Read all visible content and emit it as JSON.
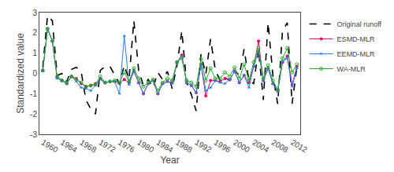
{
  "chart_data": {
    "type": "line",
    "x": [
      1960,
      1961,
      1962,
      1963,
      1964,
      1965,
      1966,
      1967,
      1968,
      1969,
      1970,
      1971,
      1972,
      1973,
      1974,
      1975,
      1976,
      1977,
      1978,
      1979,
      1980,
      1981,
      1982,
      1983,
      1984,
      1985,
      1986,
      1987,
      1988,
      1989,
      1990,
      1991,
      1992,
      1993,
      1994,
      1995,
      1996,
      1997,
      1998,
      1999,
      2000,
      2001,
      2002,
      2003,
      2004,
      2005,
      2006,
      2007,
      2008,
      2009,
      2010,
      2011,
      2012,
      2013
    ],
    "series": [
      {
        "name": "Original runoff",
        "color": "#000000",
        "line_style": "dashed",
        "marker": "none",
        "values": [
          0.3,
          2.85,
          2.6,
          -0.1,
          0.0,
          -0.4,
          0.2,
          0.3,
          0.1,
          -1.3,
          -1.75,
          -2.0,
          0.15,
          0.35,
          0.35,
          -0.1,
          -0.5,
          0.4,
          -0.3,
          2.6,
          0.15,
          -0.6,
          -0.3,
          -0.7,
          0.05,
          -0.3,
          0.1,
          -0.75,
          0.4,
          2.1,
          -0.45,
          -1.05,
          -1.85,
          0.95,
          -0.05,
          1.7,
          0.15,
          -0.35,
          -0.2,
          -0.35,
          0.15,
          -0.1,
          1.2,
          -0.35,
          -0.5,
          1.2,
          -1.3,
          2.5,
          -0.1,
          -1.5,
          2.1,
          2.5,
          -1.5,
          0.3
        ]
      },
      {
        "name": "ESMD-MLR",
        "color": "#E8006E",
        "line_style": "solid",
        "marker": "circle",
        "values": [
          0.15,
          2.2,
          1.6,
          -0.2,
          -0.35,
          -0.5,
          -0.15,
          -0.25,
          -0.5,
          -0.65,
          -0.6,
          -0.5,
          -0.25,
          -0.45,
          -0.4,
          -0.4,
          -0.5,
          -0.3,
          -0.45,
          0.1,
          -0.45,
          -1.0,
          -0.5,
          -0.35,
          -1.0,
          -0.5,
          -0.4,
          -0.45,
          0.55,
          0.9,
          -0.45,
          -0.6,
          -0.95,
          0.45,
          -1.1,
          -0.35,
          -0.35,
          -0.4,
          -0.25,
          -0.3,
          0.1,
          -0.45,
          -0.1,
          -0.45,
          0.35,
          1.6,
          -0.35,
          0.25,
          -0.5,
          -0.85,
          0.55,
          0.85,
          -0.55,
          0.35
        ]
      },
      {
        "name": "EEMD-MLR",
        "color": "#2080EE",
        "line_style": "solid",
        "marker": "triangle",
        "values": [
          0.1,
          2.2,
          1.6,
          -0.25,
          -0.35,
          -0.5,
          -0.15,
          -0.4,
          -0.7,
          -0.75,
          -0.85,
          -0.6,
          -0.3,
          -0.45,
          -0.4,
          -0.4,
          -1.0,
          1.85,
          -0.55,
          0.15,
          -0.45,
          -1.0,
          -0.5,
          -0.35,
          -1.0,
          -0.5,
          -0.4,
          -0.5,
          0.55,
          0.85,
          -0.45,
          -0.6,
          -0.95,
          0.45,
          -0.85,
          -0.7,
          -0.35,
          -0.45,
          -0.5,
          -0.3,
          0.1,
          -0.45,
          -0.1,
          -0.7,
          0.35,
          1.1,
          -0.35,
          0.25,
          -0.5,
          -0.9,
          0.6,
          0.75,
          -0.65,
          0.25
        ]
      },
      {
        "name": "WA-MLR",
        "color": "#22AA22",
        "line_style": "solid",
        "marker": "open_circle",
        "values": [
          0.15,
          2.2,
          1.6,
          -0.15,
          -0.35,
          -0.45,
          -0.15,
          -0.3,
          -0.45,
          -0.65,
          -0.6,
          -0.55,
          -0.15,
          -0.45,
          -0.4,
          -0.35,
          -0.45,
          0.05,
          -0.4,
          0.25,
          -0.25,
          -0.65,
          -0.45,
          -0.3,
          -0.85,
          -0.45,
          -0.25,
          -0.35,
          0.55,
          0.75,
          -0.35,
          -0.45,
          -0.65,
          0.7,
          -0.35,
          0.25,
          -0.25,
          -0.25,
          0.05,
          -0.15,
          0.3,
          -0.25,
          0.45,
          -0.35,
          0.55,
          1.25,
          -0.25,
          0.4,
          -0.35,
          -0.8,
          0.75,
          1.25,
          0.05,
          0.45
        ]
      }
    ],
    "xlabel": "Year",
    "ylabel": "Standardized value",
    "xlim": [
      1959.3,
      2013.7
    ],
    "xticks": [
      1960,
      1964,
      1968,
      1972,
      1976,
      1980,
      1984,
      1988,
      1992,
      1996,
      2000,
      2004,
      2008,
      2012
    ],
    "ylim": [
      -3,
      3
    ],
    "yticks": [
      -3,
      -2,
      -1,
      0,
      1,
      2,
      3
    ],
    "grid": false,
    "legend": "upper right"
  }
}
